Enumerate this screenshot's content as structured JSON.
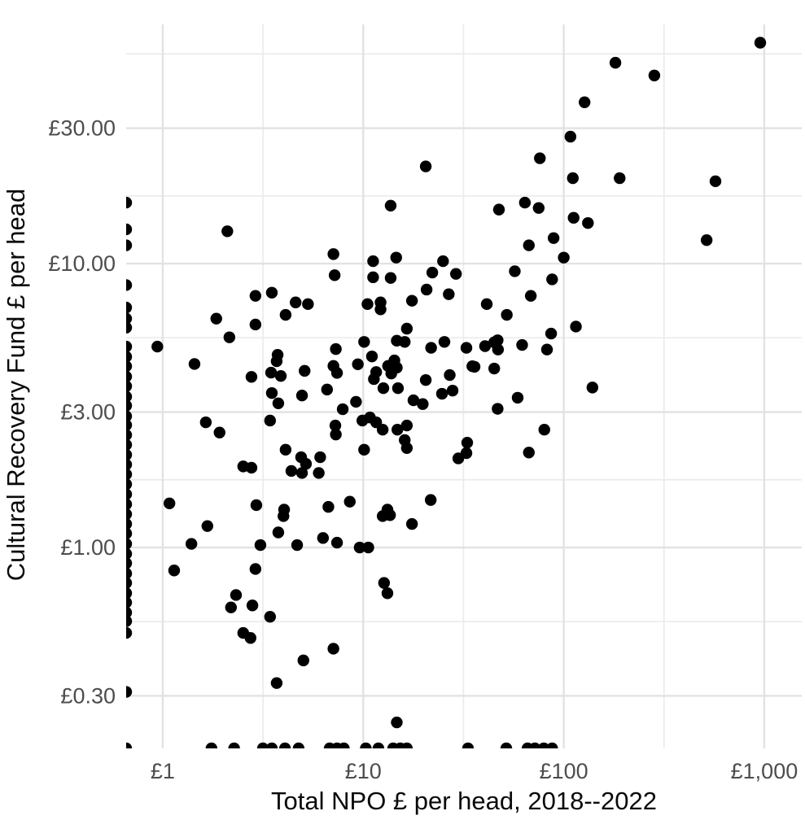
{
  "figure": {
    "x_axis_title": "Total NPO £ per head, 2018--2022",
    "y_axis_title": "Cultural Recovery Fund £ per head"
  },
  "chart_data": {
    "type": "scatter",
    "title": "",
    "xlabel": "Total NPO £ per head, 2018--2022",
    "ylabel": "Cultural Recovery Fund £ per head",
    "x_scale": "log10",
    "y_scale": "log10",
    "grid": "on",
    "legend": "none",
    "point_color": "#000000",
    "point_radius_px": 7.2,
    "xlim": [
      0.657,
      1538
    ],
    "ylim": [
      0.196,
      69.6
    ],
    "x_ticks": [
      {
        "value": 1,
        "label": "£1"
      },
      {
        "value": 10,
        "label": "£10"
      },
      {
        "value": 100,
        "label": "£100"
      },
      {
        "value": 1000,
        "label": "£1,000"
      }
    ],
    "y_ticks": [
      {
        "value": 30,
        "label": "£30.00"
      },
      {
        "value": 10,
        "label": "£10.00"
      },
      {
        "value": 3,
        "label": "£3.00"
      },
      {
        "value": 1,
        "label": "£1.00"
      },
      {
        "value": 0.3,
        "label": "£0.30"
      }
    ],
    "x_minor_ticks": [
      3.162,
      31.62,
      316.2
    ],
    "y_minor_ticks": [
      54.8,
      17.32,
      5.48,
      1.732,
      0.548
    ],
    "points": [
      [
        20.5,
        22
      ],
      [
        13.7,
        16
      ],
      [
        2.1,
        13
      ],
      [
        7.1,
        10.8
      ],
      [
        11.2,
        10.2
      ],
      [
        14.6,
        10.5
      ],
      [
        25,
        10.2
      ],
      [
        955,
        60
      ],
      [
        181,
        51
      ],
      [
        283,
        46
      ],
      [
        127,
        37
      ],
      [
        108,
        28
      ],
      [
        76,
        23.5
      ],
      [
        111,
        20
      ],
      [
        190,
        20
      ],
      [
        571,
        19.5
      ],
      [
        47.5,
        15.5
      ],
      [
        64,
        16.4
      ],
      [
        75,
        15.7
      ],
      [
        112,
        14.5
      ],
      [
        132,
        13.9
      ],
      [
        89,
        12.3
      ],
      [
        67,
        11.6
      ],
      [
        516,
        12.1
      ],
      [
        100,
        10.5
      ],
      [
        7.2,
        9.1
      ],
      [
        11.2,
        8.95
      ],
      [
        13.7,
        8.9
      ],
      [
        22.1,
        9.3
      ],
      [
        29,
        9.2
      ],
      [
        20.7,
        8.1
      ],
      [
        26.7,
        7.8
      ],
      [
        2.9,
        7.7
      ],
      [
        3.5,
        7.9
      ],
      [
        4.6,
        7.3
      ],
      [
        5.3,
        7.2
      ],
      [
        10.5,
        7.2
      ],
      [
        12.2,
        7.3
      ],
      [
        17.5,
        7.4
      ],
      [
        12.2,
        6.9
      ],
      [
        4.1,
        6.6
      ],
      [
        57,
        9.4
      ],
      [
        87.5,
        8.8
      ],
      [
        68.5,
        7.7
      ],
      [
        41.3,
        7.2
      ],
      [
        52,
        6.6
      ],
      [
        1.85,
        6.4
      ],
      [
        2.9,
        6.1
      ],
      [
        2.15,
        5.5
      ],
      [
        0.94,
        5.1
      ],
      [
        16.5,
        5.9
      ],
      [
        10.1,
        5.3
      ],
      [
        14.7,
        5.35
      ],
      [
        16.1,
        5.3
      ],
      [
        21.8,
        5.05
      ],
      [
        25.4,
        5.3
      ],
      [
        32.7,
        5.05
      ],
      [
        7.3,
        5.0
      ],
      [
        7.1,
        4.36
      ],
      [
        7.4,
        4.12
      ],
      [
        9.4,
        4.42
      ],
      [
        11.05,
        4.71
      ],
      [
        11.6,
        4.15
      ],
      [
        11.3,
        3.92
      ],
      [
        13.3,
        4.36
      ],
      [
        14.3,
        4.56
      ],
      [
        14.7,
        4.3
      ],
      [
        13.8,
        4.1
      ],
      [
        1.44,
        4.43
      ],
      [
        3.74,
        4.77
      ],
      [
        3.7,
        4.53
      ],
      [
        3.47,
        4.13
      ],
      [
        3.88,
        4.02
      ],
      [
        5.1,
        4.19
      ],
      [
        2.77,
        3.99
      ],
      [
        35,
        4.35
      ],
      [
        27,
        4.05
      ],
      [
        24.7,
        3.48
      ],
      [
        27.9,
        3.57
      ],
      [
        115,
        6.0
      ],
      [
        86.5,
        5.67
      ],
      [
        46.8,
        5.37
      ],
      [
        62,
        5.17
      ],
      [
        82.5,
        4.98
      ],
      [
        40.5,
        5.12
      ],
      [
        45,
        5.28
      ],
      [
        47,
        4.98
      ],
      [
        35.9,
        4.33
      ],
      [
        45,
        4.27
      ],
      [
        20.5,
        3.89
      ],
      [
        12.6,
        3.64
      ],
      [
        14.9,
        3.64
      ],
      [
        3.5,
        3.5
      ],
      [
        4.95,
        3.43
      ],
      [
        6.6,
        3.6
      ],
      [
        3.77,
        3.22
      ],
      [
        7.9,
        3.07
      ],
      [
        9.2,
        3.26
      ],
      [
        17.8,
        3.3
      ],
      [
        19.8,
        3.2
      ],
      [
        139,
        3.66
      ],
      [
        58.9,
        3.37
      ],
      [
        46.8,
        3.08
      ],
      [
        7.26,
        2.69
      ],
      [
        7.3,
        2.5
      ],
      [
        1.64,
        2.76
      ],
      [
        1.92,
        2.54
      ],
      [
        3.43,
        2.8
      ],
      [
        9.9,
        2.8
      ],
      [
        10.8,
        2.87
      ],
      [
        11.6,
        2.76
      ],
      [
        12.5,
        2.6
      ],
      [
        14.8,
        2.6
      ],
      [
        16.5,
        2.69
      ],
      [
        16.1,
        2.39
      ],
      [
        16.5,
        2.24
      ],
      [
        33,
        2.34
      ],
      [
        32.7,
        2.15
      ],
      [
        29.8,
        2.06
      ],
      [
        80,
        2.6
      ],
      [
        4.1,
        2.21
      ],
      [
        10.1,
        2.21
      ],
      [
        4.9,
        2.08
      ],
      [
        5.18,
        1.97
      ],
      [
        6.1,
        2.08
      ],
      [
        4.38,
        1.86
      ],
      [
        4.95,
        1.83
      ],
      [
        6.0,
        1.83
      ],
      [
        2.52,
        1.93
      ],
      [
        2.77,
        1.91
      ],
      [
        67,
        2.16
      ],
      [
        1.08,
        1.43
      ],
      [
        2.93,
        1.41
      ],
      [
        6.7,
        1.39
      ],
      [
        8.57,
        1.45
      ],
      [
        13.2,
        1.36
      ],
      [
        21.7,
        1.47
      ],
      [
        4.03,
        1.36
      ],
      [
        1.67,
        1.19
      ],
      [
        4.0,
        1.29
      ],
      [
        12.5,
        1.29
      ],
      [
        13.6,
        1.3
      ],
      [
        17.5,
        1.21
      ],
      [
        1.39,
        1.03
      ],
      [
        3.77,
        1.13
      ],
      [
        3.07,
        1.02
      ],
      [
        4.68,
        1.02
      ],
      [
        6.3,
        1.08
      ],
      [
        7.4,
        1.04
      ],
      [
        9.6,
        1.0
      ],
      [
        10.6,
        1.0
      ],
      [
        1.14,
        0.83
      ],
      [
        2.9,
        0.84
      ],
      [
        12.7,
        0.75
      ],
      [
        13.2,
        0.69
      ],
      [
        2.32,
        0.68
      ],
      [
        2.19,
        0.615
      ],
      [
        2.8,
        0.625
      ],
      [
        3.43,
        0.57
      ],
      [
        2.52,
        0.5
      ],
      [
        2.74,
        0.48
      ],
      [
        7.1,
        0.44
      ],
      [
        5.03,
        0.4
      ],
      [
        3.7,
        0.333
      ],
      [
        14.7,
        0.242
      ]
    ],
    "zero_x_points": [
      16.4,
      13.2,
      11.6,
      8.4,
      7.0,
      6.4,
      5.95,
      5.1,
      4.7,
      4.35,
      4.0,
      3.7,
      3.4,
      3.16,
      2.9,
      2.7,
      2.49,
      2.3,
      2.12,
      1.96,
      1.81,
      1.67,
      1.54,
      1.42,
      1.31,
      1.21,
      1.12,
      1.03,
      0.95,
      0.88,
      0.81,
      0.75,
      0.69,
      0.64,
      0.59,
      0.55,
      0.5,
      0.31
    ],
    "zero_y_points": [
      1.75,
      2.27,
      3.16,
      3.5,
      4.07,
      4.76,
      6.8,
      7.4,
      8.0,
      10.3,
      11.9,
      14.1,
      15.3,
      16.5,
      33.3,
      51.7,
      66,
      71.8,
      79.5,
      87.5
    ],
    "origin_point": true
  }
}
